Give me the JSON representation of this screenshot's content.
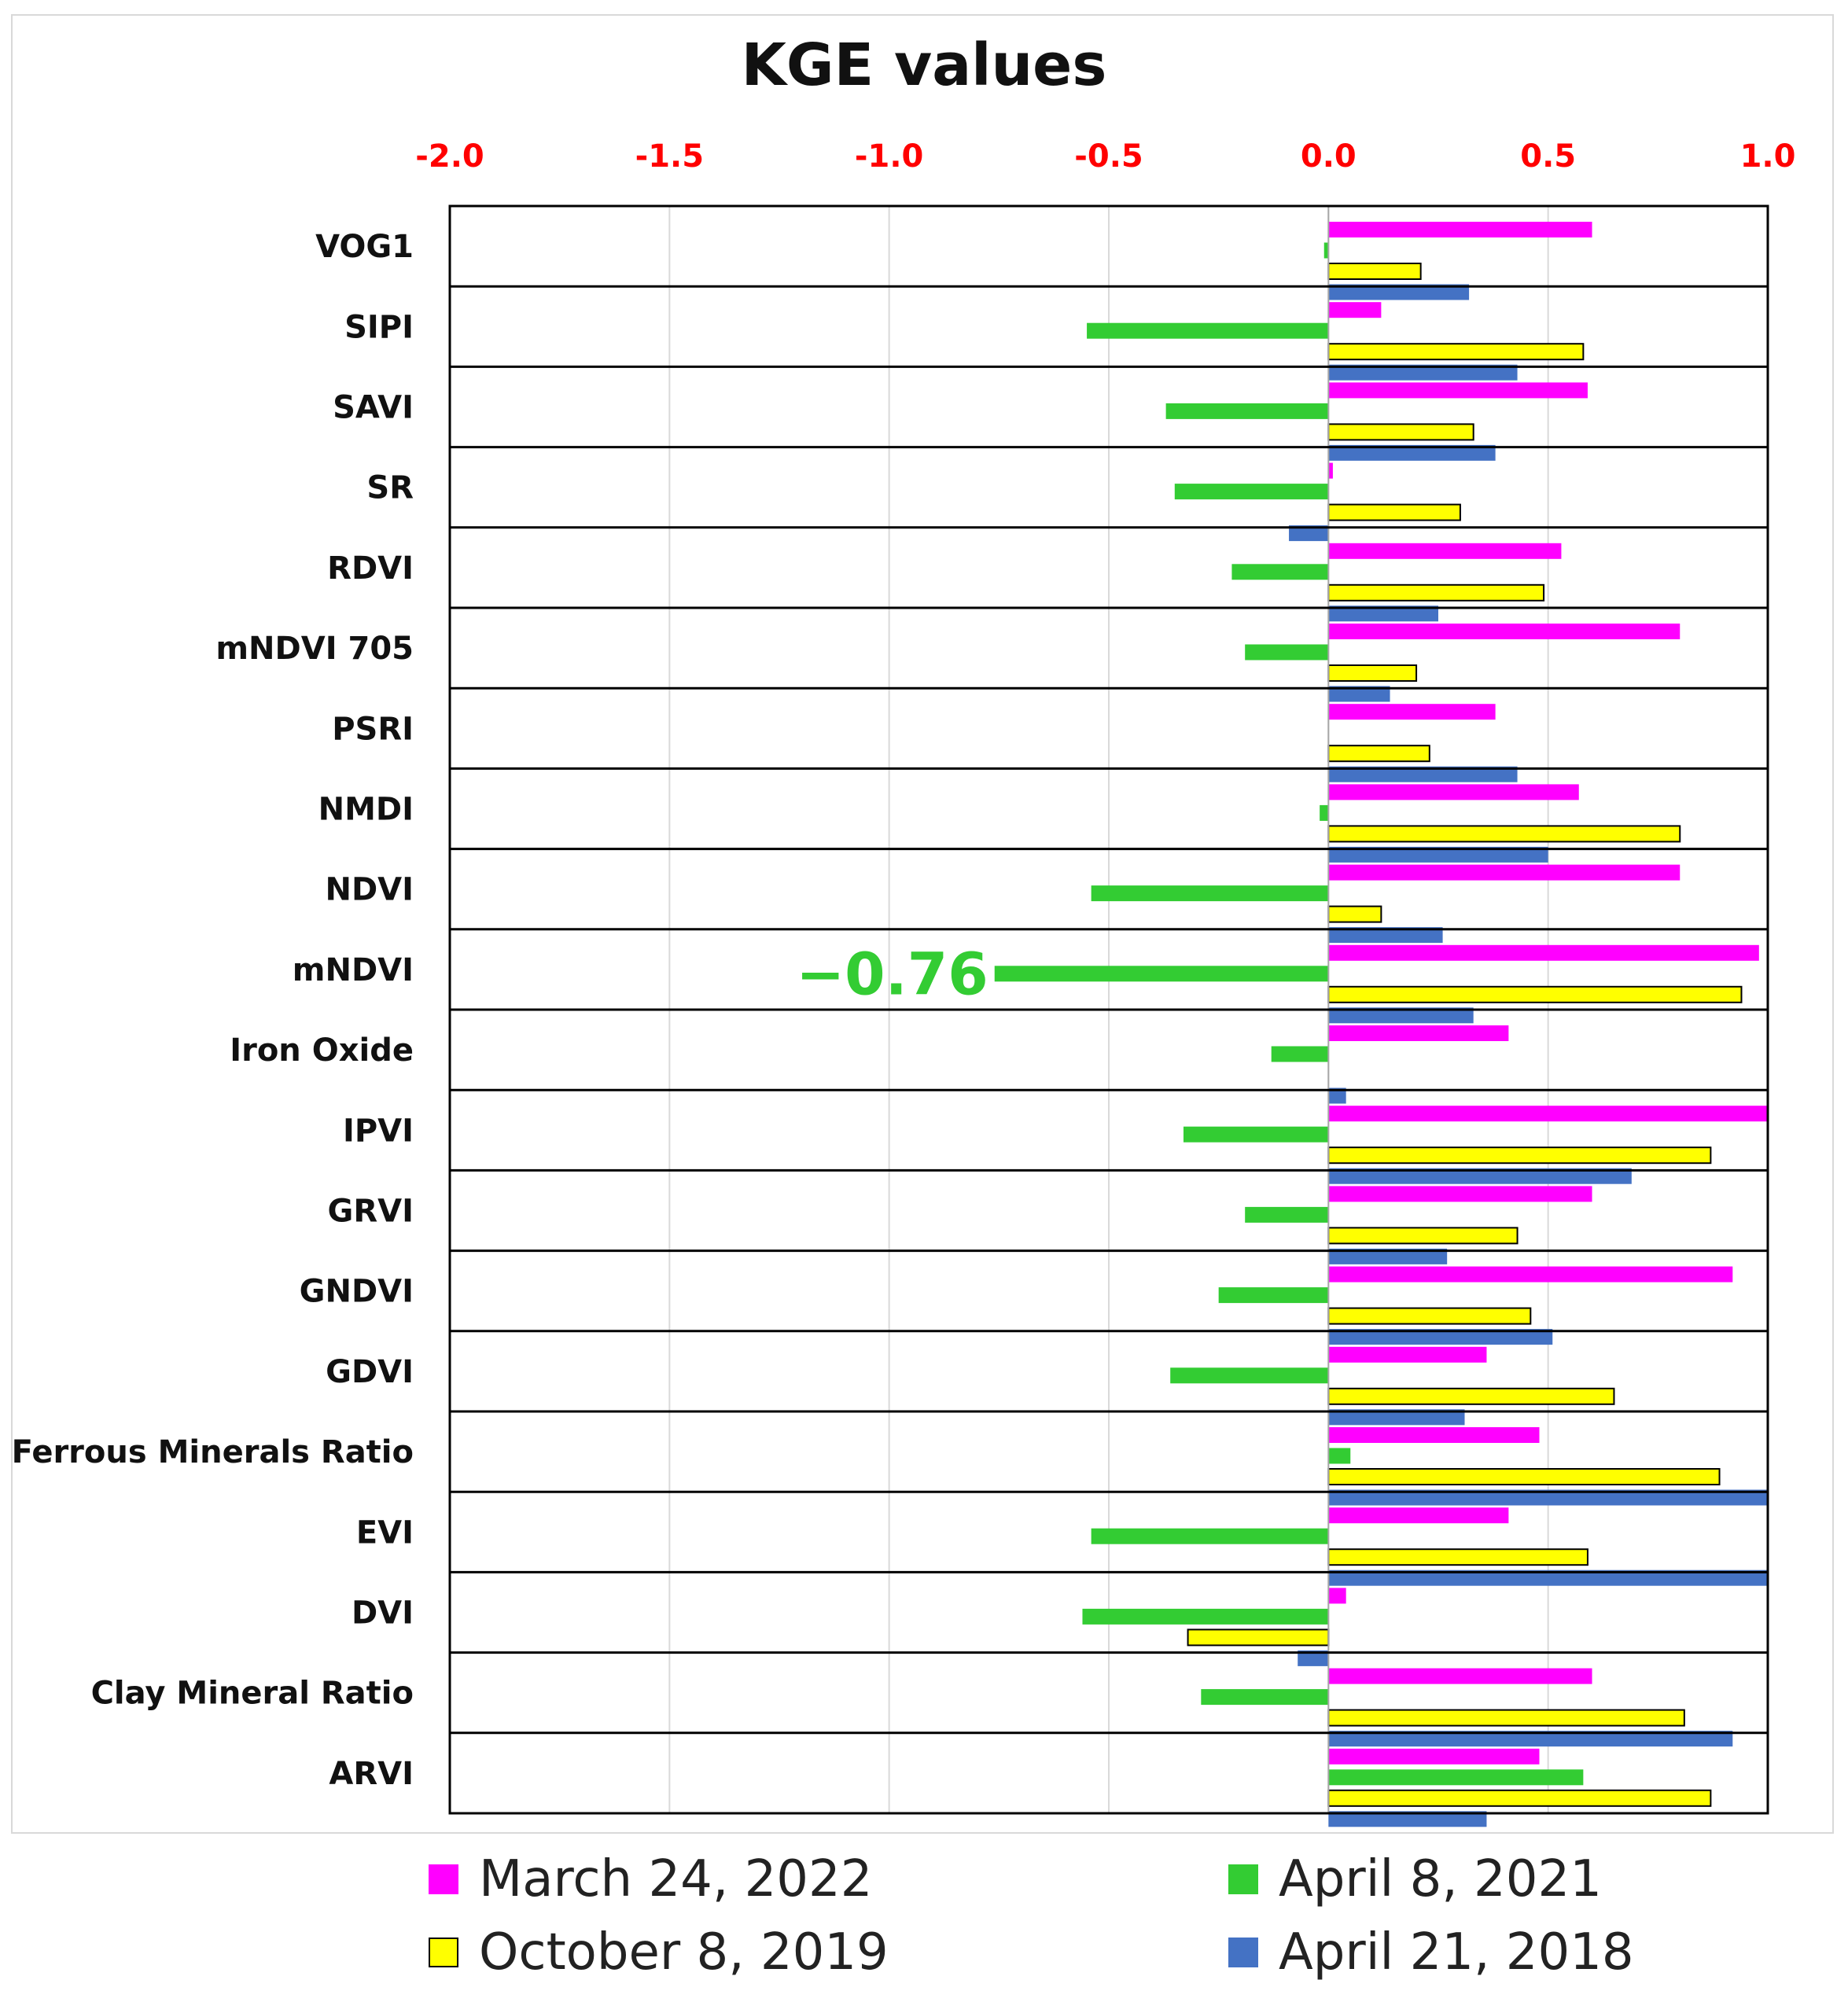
{
  "chart_data": {
    "type": "bar",
    "orientation": "horizontal",
    "title": "KGE values",
    "xlim": [
      -2.0,
      1.0
    ],
    "x_ticks": [
      "-2.0",
      "-1.5",
      "-1.0",
      "-0.5",
      "0.0",
      "0.5",
      "1.0"
    ],
    "x_tick_values": [
      -2.0,
      -1.5,
      -1.0,
      -0.5,
      0.0,
      0.5,
      1.0
    ],
    "tick_label_color": "#ff0000",
    "grid": true,
    "legend_position": "bottom",
    "categories": [
      "VOG1",
      "SIPI",
      "SAVI",
      "SR",
      "RDVI",
      "mNDVI 705",
      "PSRI",
      "NMDI",
      "NDVI",
      "mNDVI",
      "Iron Oxide",
      "IPVI",
      "GRVI",
      "GNDVI",
      "GDVI",
      "Ferrous Minerals Ratio",
      "EVI",
      "DVI",
      "Clay Mineral Ratio",
      "ARVI"
    ],
    "series": [
      {
        "name": "March 24, 2022",
        "color": "#ff00ff",
        "values": [
          0.6,
          0.12,
          0.59,
          0.01,
          0.53,
          0.8,
          0.38,
          0.57,
          0.8,
          0.98,
          0.41,
          1.0,
          0.6,
          0.92,
          0.36,
          0.48,
          0.41,
          0.04,
          0.6,
          0.48
        ]
      },
      {
        "name": "April 8, 2021",
        "color": "#33cc33",
        "values": [
          -0.01,
          -0.55,
          -0.37,
          -0.35,
          -0.22,
          -0.19,
          0.0,
          -0.02,
          -0.54,
          -0.76,
          -0.13,
          -0.33,
          -0.19,
          -0.25,
          -0.36,
          0.05,
          -0.54,
          -0.56,
          -0.29,
          0.58
        ]
      },
      {
        "name": "October 8, 2019",
        "color": "#ffff00",
        "outline": "#000000",
        "values": [
          0.21,
          0.58,
          0.33,
          0.3,
          0.49,
          0.2,
          0.23,
          0.8,
          0.12,
          0.94,
          0.0,
          0.87,
          0.43,
          0.46,
          0.65,
          0.89,
          0.59,
          -0.32,
          0.81,
          0.87
        ]
      },
      {
        "name": "April 21, 2018",
        "color": "#4472c4",
        "values": [
          0.32,
          0.43,
          0.38,
          -0.09,
          0.25,
          0.14,
          0.43,
          0.5,
          0.26,
          0.33,
          0.04,
          0.69,
          0.27,
          0.51,
          0.31,
          1.0,
          1.0,
          -0.07,
          0.92,
          0.36
        ]
      }
    ],
    "annotations": [
      {
        "text": "−0.76",
        "category": "mNDVI",
        "series": "April 8, 2021"
      }
    ]
  }
}
